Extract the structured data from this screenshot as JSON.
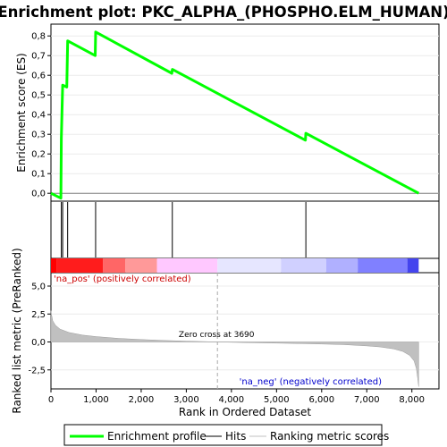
{
  "chart_data": [
    {
      "type": "line",
      "title": "Enrichment plot: PKC_ALPHA_(PHOSPHO.ELM_HUMAN)",
      "ylabel": "Enrichment score (ES)",
      "ylim": [
        -0.04,
        0.86
      ],
      "yticks": [
        "0,0",
        "0,1",
        "0,2",
        "0,3",
        "0,4",
        "0,5",
        "0,6",
        "0,7",
        "0,8"
      ],
      "ytick_values": [
        0,
        0.1,
        0.2,
        0.3,
        0.4,
        0.5,
        0.6,
        0.7,
        0.8
      ],
      "xlim": [
        0,
        8600
      ],
      "color": "#00ff00",
      "series": [
        {
          "name": "Enrichment profile",
          "x": [
            0,
            220,
            230,
            260,
            350,
            370,
            980,
            990,
            2680,
            2690,
            5640,
            5650,
            8150
          ],
          "y": [
            0.0,
            -0.025,
            0.28,
            0.55,
            0.54,
            0.775,
            0.7,
            0.82,
            0.61,
            0.63,
            0.27,
            0.305,
            0.0
          ]
        }
      ]
    },
    {
      "type": "scatter",
      "series": [
        {
          "name": "Hits",
          "x": [
            230,
            260,
            370,
            990,
            2690,
            5650
          ]
        }
      ]
    },
    {
      "type": "heatmap",
      "colors": [
        "#ff0000",
        "#ff1c1c",
        "#ff6666",
        "#ff9999",
        "#ffc8ff",
        "#e6e6ff",
        "#d0d0ff",
        "#b0b0ff",
        "#8080ff",
        "#4444ee",
        "#1a1acc"
      ],
      "stops": [
        0,
        120,
        1150,
        1650,
        2350,
        3690,
        5100,
        6100,
        6800,
        7900,
        8150
      ]
    },
    {
      "type": "area",
      "ylabel": "Ranked list metric (PreRanked)",
      "xlabel": "Rank in Ordered Dataset",
      "ylim": [
        -4.2,
        6.2
      ],
      "yticks": [
        "-2,5",
        "0,0",
        "2,5",
        "5,0"
      ],
      "ytick_values": [
        -2.5,
        0,
        2.5,
        5
      ],
      "xlim": [
        0,
        8600
      ],
      "xticks": [
        "0",
        "1,000",
        "2,000",
        "3,000",
        "4,000",
        "5,000",
        "6,000",
        "7,000",
        "8,000"
      ],
      "xtick_values": [
        0,
        1000,
        2000,
        3000,
        4000,
        5000,
        6000,
        7000,
        8000
      ],
      "series": [
        {
          "name": "Ranking metric scores",
          "x": [
            0,
            10,
            40,
            100,
            200,
            400,
            700,
            1000,
            1500,
            2000,
            2500,
            3000,
            3690,
            4500,
            5000,
            5500,
            6000,
            6500,
            7000,
            7300,
            7600,
            7800,
            7950,
            8050,
            8100,
            8130,
            8150
          ],
          "y": [
            2.8,
            2.5,
            1.9,
            1.5,
            1.15,
            0.85,
            0.62,
            0.48,
            0.32,
            0.22,
            0.14,
            0.07,
            0.0,
            -0.07,
            -0.1,
            -0.14,
            -0.18,
            -0.24,
            -0.35,
            -0.45,
            -0.62,
            -0.85,
            -1.2,
            -1.7,
            -2.4,
            -3.3,
            -4.0
          ]
        }
      ],
      "annotations": {
        "positive": "'na_pos' (positively correlated)",
        "negative": "'na_neg' (negatively correlated)",
        "zero_cross": "Zero cross at 3690",
        "zero_cross_x": 3690
      }
    }
  ],
  "legend": {
    "items": [
      {
        "label": "Enrichment profile",
        "color": "#00ff00"
      },
      {
        "label": "Hits",
        "color": "#000000"
      },
      {
        "label": "Ranking metric scores",
        "color": "#c0c0c0"
      }
    ]
  }
}
